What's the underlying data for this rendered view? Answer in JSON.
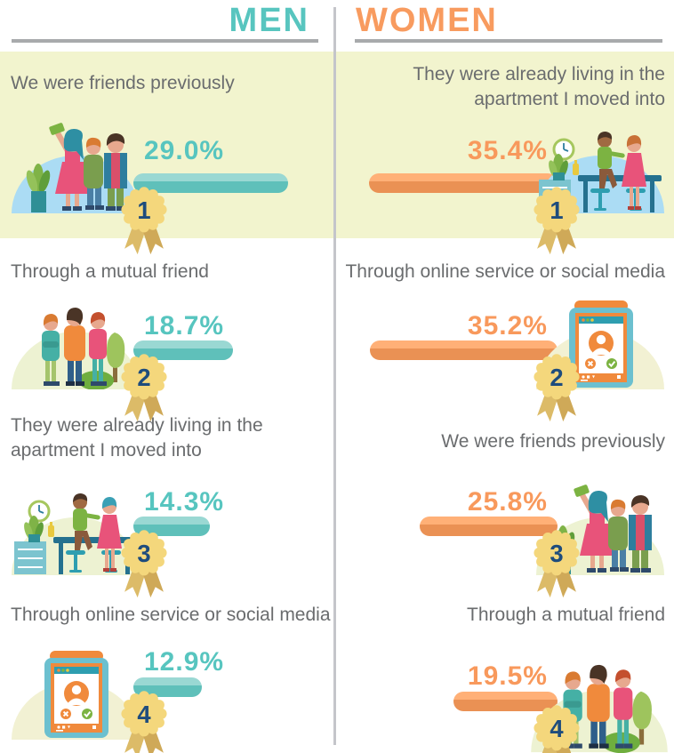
{
  "header": {
    "left": "MEN",
    "right": "WOMEN"
  },
  "colors": {
    "men_accent": "#58c5bf",
    "women_accent": "#f89b5f",
    "highlight_band": "#f2f4ce",
    "label_text": "#6a6c6e",
    "badge_gold": "#f4d77c",
    "badge_number": "#1e4c7d"
  },
  "columns": {
    "men": {
      "title": "MEN",
      "items": [
        {
          "rank": "1",
          "label": "We were friends previously",
          "value": 29.0,
          "display": "29.0%",
          "illustration": "friends-selfie"
        },
        {
          "rank": "2",
          "label": "Through a mutual friend",
          "value": 18.7,
          "display": "18.7%",
          "illustration": "friends-group"
        },
        {
          "rank": "3",
          "label": "They were already living in the apartment I moved into",
          "value": 14.3,
          "display": "14.3%",
          "illustration": "kitchen-chat"
        },
        {
          "rank": "4",
          "label": "Through online service or social media",
          "value": 12.9,
          "display": "12.9%",
          "illustration": "tablet-app"
        }
      ]
    },
    "women": {
      "title": "WOMEN",
      "items": [
        {
          "rank": "1",
          "label": "They were already living in the apartment I moved into",
          "value": 35.4,
          "display": "35.4%",
          "illustration": "kitchen-chat"
        },
        {
          "rank": "2",
          "label": "Through online service or social media",
          "value": 35.2,
          "display": "35.2%",
          "illustration": "tablet-app"
        },
        {
          "rank": "3",
          "label": "We were friends previously",
          "value": 25.8,
          "display": "25.8%",
          "illustration": "friends-selfie"
        },
        {
          "rank": "4",
          "label": "Through a mutual friend",
          "value": 19.5,
          "display": "19.5%",
          "illustration": "friends-group"
        }
      ]
    }
  },
  "chart_data": {
    "type": "bar",
    "units": "percent",
    "legend": [
      "MEN",
      "WOMEN"
    ],
    "series": [
      {
        "name": "MEN",
        "categories": [
          "We were friends previously",
          "Through a mutual friend",
          "They were already living in the apartment I moved into",
          "Through online service or social media"
        ],
        "values": [
          29.0,
          18.7,
          14.3,
          12.9
        ],
        "ranks": [
          1,
          2,
          3,
          4
        ],
        "color": "#5fc0ba"
      },
      {
        "name": "WOMEN",
        "categories": [
          "They were already living in the apartment I moved into",
          "Through online service or social media",
          "We were friends previously",
          "Through a mutual friend"
        ],
        "values": [
          35.4,
          35.2,
          25.8,
          19.5
        ],
        "ranks": [
          1,
          2,
          3,
          4
        ],
        "color": "#ea9154"
      }
    ],
    "xlim": [
      0,
      40
    ],
    "grid": false,
    "legend_position": "top"
  }
}
